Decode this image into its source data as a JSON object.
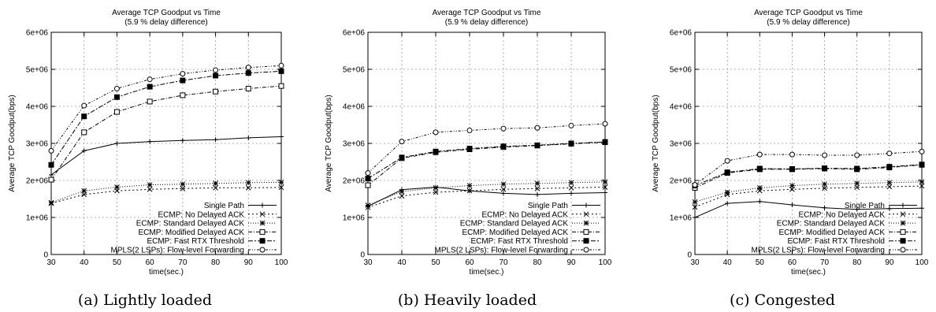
{
  "chart_data": [
    {
      "type": "line",
      "title": "Average TCP Goodput vs Time",
      "subtitle": "(5.9 % delay difference)",
      "xlabel": "time(sec.)",
      "ylabel": "Average TCP Goodput(bps)",
      "caption": "(a) Lightly loaded",
      "xlim": [
        30,
        100
      ],
      "ylim": [
        0,
        6000000
      ],
      "x_ticks": [
        "30",
        "40",
        "50",
        "60",
        "70",
        "80",
        "90",
        "100"
      ],
      "y_ticks": [
        "0",
        "1e+06",
        "2e+06",
        "3e+06",
        "4e+06",
        "5e+06",
        "6e+06"
      ],
      "grid": true,
      "legend_position": "bottom-right",
      "x": [
        30,
        40,
        50,
        60,
        70,
        80,
        90,
        100
      ],
      "series": [
        {
          "name": "Single Path",
          "values": [
            2150000,
            2800000,
            3000000,
            3050000,
            3080000,
            3100000,
            3150000,
            3180000
          ]
        },
        {
          "name": "ECMP: No Delayed ACK",
          "values": [
            1380000,
            1620000,
            1720000,
            1760000,
            1780000,
            1800000,
            1800000,
            1810000
          ]
        },
        {
          "name": "ECMP: Standard Delayed ACK",
          "values": [
            1400000,
            1720000,
            1820000,
            1880000,
            1900000,
            1920000,
            1940000,
            1950000
          ]
        },
        {
          "name": "ECMP: Modified Delayed ACK",
          "values": [
            2020000,
            3300000,
            3850000,
            4130000,
            4300000,
            4400000,
            4480000,
            4550000
          ]
        },
        {
          "name": "ECMP: Fast RTX Threshold",
          "values": [
            2420000,
            3730000,
            4250000,
            4530000,
            4700000,
            4830000,
            4900000,
            4950000
          ]
        },
        {
          "name": "MPLS(2 LSPs): Flow-level Forwarding",
          "values": [
            2800000,
            4020000,
            4480000,
            4730000,
            4880000,
            4980000,
            5050000,
            5100000
          ]
        }
      ]
    },
    {
      "type": "line",
      "title": "Average TCP Goodput vs Time",
      "subtitle": "(5.9 % delay difference)",
      "xlabel": "time(sec.)",
      "ylabel": "Average TCP Goodput(bps)",
      "caption": "(b) Heavily loaded",
      "xlim": [
        30,
        100
      ],
      "ylim": [
        0,
        6000000
      ],
      "x_ticks": [
        "30",
        "40",
        "50",
        "60",
        "70",
        "80",
        "90",
        "100"
      ],
      "y_ticks": [
        "0",
        "1e+06",
        "2e+06",
        "3e+06",
        "4e+06",
        "5e+06",
        "6e+06"
      ],
      "grid": true,
      "legend_position": "bottom-right",
      "x": [
        30,
        40,
        50,
        60,
        70,
        80,
        90,
        100
      ],
      "series": [
        {
          "name": "Single Path",
          "values": [
            1300000,
            1750000,
            1820000,
            1720000,
            1650000,
            1620000,
            1650000,
            1670000
          ]
        },
        {
          "name": "ECMP: No Delayed ACK",
          "values": [
            1270000,
            1580000,
            1680000,
            1720000,
            1760000,
            1780000,
            1800000,
            1820000
          ]
        },
        {
          "name": "ECMP: Standard Delayed ACK",
          "values": [
            1330000,
            1700000,
            1800000,
            1860000,
            1900000,
            1920000,
            1940000,
            1960000
          ]
        },
        {
          "name": "ECMP: Modified Delayed ACK",
          "values": [
            1870000,
            2600000,
            2760000,
            2840000,
            2900000,
            2940000,
            2990000,
            3030000
          ]
        },
        {
          "name": "ECMP: Fast RTX Threshold",
          "values": [
            2050000,
            2620000,
            2780000,
            2860000,
            2920000,
            2950000,
            3000000,
            3040000
          ]
        },
        {
          "name": "MPLS(2 LSPs): Flow-level Forwarding",
          "values": [
            2200000,
            3050000,
            3300000,
            3350000,
            3400000,
            3420000,
            3480000,
            3530000
          ]
        }
      ]
    },
    {
      "type": "line",
      "title": "Average TCP Goodput vs Time",
      "subtitle": "(5.9 % delay difference)",
      "xlabel": "time(sec.)",
      "ylabel": "Average TCP Goodput(bps)",
      "caption": "(c) Congested",
      "xlim": [
        30,
        100
      ],
      "ylim": [
        0,
        6000000
      ],
      "x_ticks": [
        "30",
        "40",
        "50",
        "60",
        "70",
        "80",
        "90",
        "100"
      ],
      "y_ticks": [
        "0",
        "1e+06",
        "2e+06",
        "3e+06",
        "4e+06",
        "5e+06",
        "6e+06"
      ],
      "grid": true,
      "legend_position": "bottom-right",
      "x": [
        30,
        40,
        50,
        60,
        70,
        80,
        90,
        100
      ],
      "series": [
        {
          "name": "Single Path",
          "values": [
            1000000,
            1380000,
            1430000,
            1340000,
            1260000,
            1220000,
            1240000,
            1250000
          ]
        },
        {
          "name": "ECMP: No Delayed ACK",
          "values": [
            1280000,
            1620000,
            1720000,
            1760000,
            1790000,
            1810000,
            1830000,
            1850000
          ]
        },
        {
          "name": "ECMP: Standard Delayed ACK",
          "values": [
            1420000,
            1680000,
            1800000,
            1860000,
            1900000,
            1920000,
            1940000,
            1960000
          ]
        },
        {
          "name": "ECMP: Modified Delayed ACK",
          "values": [
            1800000,
            2200000,
            2300000,
            2300000,
            2320000,
            2300000,
            2350000,
            2420000
          ]
        },
        {
          "name": "ECMP: Fast RTX Threshold",
          "values": [
            1860000,
            2220000,
            2320000,
            2310000,
            2330000,
            2320000,
            2370000,
            2430000
          ]
        },
        {
          "name": "MPLS(2 LSPs): Flow-level Forwarding",
          "values": [
            1880000,
            2530000,
            2700000,
            2700000,
            2680000,
            2680000,
            2730000,
            2780000
          ]
        }
      ]
    }
  ]
}
